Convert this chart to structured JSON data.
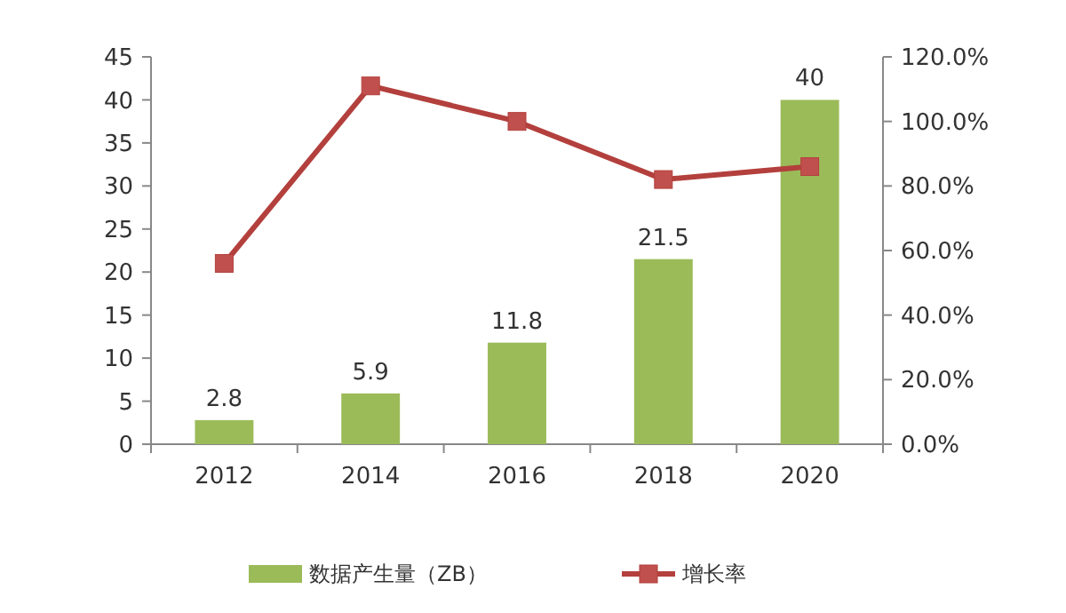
{
  "chart_data": {
    "type": "bar",
    "categories": [
      "2012",
      "2014",
      "2016",
      "2018",
      "2020"
    ],
    "series": [
      {
        "name": "数据产生量（ZB）",
        "color": "#9bbb59",
        "values": [
          2.8,
          5.9,
          11.8,
          21.5,
          40
        ],
        "data_labels": true
      },
      {
        "name": "增长率",
        "type": "line",
        "axis": "y2",
        "color": "#b3403d",
        "values": [
          56,
          111,
          100,
          82,
          86
        ],
        "marker": "square"
      }
    ],
    "ylim": [
      0,
      45
    ],
    "yticks": [
      0,
      5,
      10,
      15,
      20,
      25,
      30,
      35,
      40,
      45
    ],
    "y2lim": [
      0,
      120
    ],
    "y2ticks": [
      {
        "value": 0,
        "label": "0.0%"
      },
      {
        "value": 20,
        "label": "20.0%"
      },
      {
        "value": 40,
        "label": "40.0%"
      },
      {
        "value": 60,
        "label": "60.0%"
      },
      {
        "value": 80,
        "label": "80.0%"
      },
      {
        "value": 100,
        "label": "100.0%"
      },
      {
        "value": 120,
        "label": "120.0%"
      }
    ],
    "legend": "bottom",
    "grid": false
  }
}
